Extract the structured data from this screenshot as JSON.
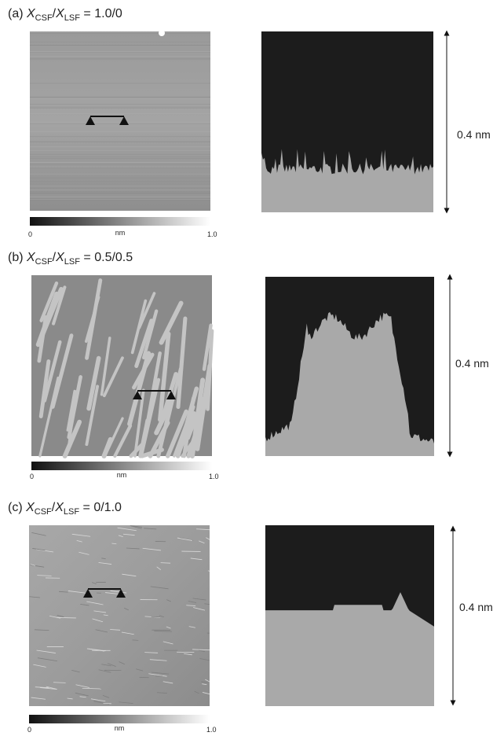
{
  "panels": [
    {
      "label": {
        "prefix": "(a) ",
        "x1": "X",
        "sub1": "CSF",
        "slash": "/",
        "x2": "X",
        "sub2": "LSF",
        "ratio": " = 1.0/0"
      },
      "colorbar": {
        "min": "0",
        "unit": "nm",
        "max": "1.0"
      },
      "scale": "0.4 nm"
    },
    {
      "label": {
        "prefix": "(b) ",
        "x1": "X",
        "sub1": "CSF",
        "slash": "/",
        "x2": "X",
        "sub2": "LSF",
        "ratio": " = 0.5/0.5"
      },
      "colorbar": {
        "min": "0",
        "unit": "nm",
        "max": "1.0"
      },
      "scale": "0.4 nm"
    },
    {
      "label": {
        "prefix": "(c) ",
        "x1": "X",
        "sub1": "CSF",
        "slash": "/",
        "x2": "X",
        "sub2": "LSF",
        "ratio": " = 0/1.0"
      },
      "colorbar": {
        "min": "0",
        "unit": "nm",
        "max": "1.0"
      },
      "scale": "0.4 nm"
    }
  ]
}
